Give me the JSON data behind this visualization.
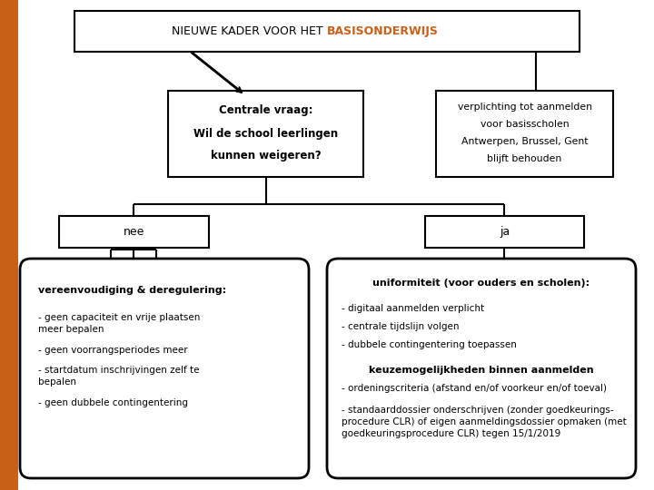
{
  "bg_color": "#ffffff",
  "orange_sidebar_color": "#c8601a",
  "orange_text_color": "#c8601a",
  "black_text_color": "#000000",
  "title_normal": "NIEUWE KADER VOOR HET ",
  "title_bold": "BASISONDERWIJS",
  "cq_line1": "Centrale vraag:",
  "cq_line2": "Wil de school leerlingen",
  "cq_line3": "kunnen weigeren?",
  "side_lines": [
    "verplichting tot aanmelden",
    "voor basisscholen",
    "Antwerpen, Brussel, Gent",
    "blijft behouden"
  ],
  "nee_text": "nee",
  "ja_text": "ja",
  "left_title": "vereenvoudiging & deregulering:",
  "left_items": [
    "- geen capaciteit en vrije plaatsen\nmeer bepalen",
    "- geen voorrangsperiodes meer",
    "- startdatum inschrijvingen zelf te\nbepalen",
    "- geen dubbele contingentering"
  ],
  "right_title": "uniformiteit (voor ouders en scholen):",
  "right_items1": [
    "- digitaal aanmelden verplicht",
    "- centrale tijdslijn volgen",
    "- dubbele contingentering toepassen"
  ],
  "right_subtitle": "keuzemogelijkheden binnen aanmelden",
  "right_items2": [
    "- ordeningscriteria (afstand en/of voorkeur en/of toeval)",
    "- standaarddossier onderschrijven (zonder goedkeurings-\nprocedure CLR) of eigen aanmeldingsdossier opmaken (met\ngoedkeuringsprocedure CLR) tegen 15/1/2019"
  ]
}
